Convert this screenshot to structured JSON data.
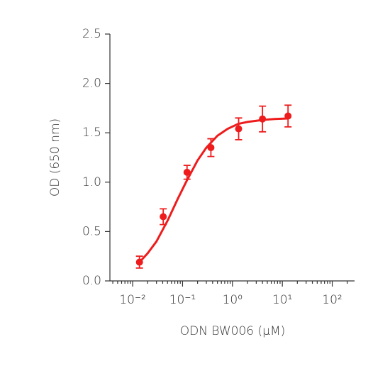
{
  "chart_data": {
    "type": "scatter",
    "x_label": "ODN BW006 (μM)",
    "y_label": "OD (650 nm)",
    "x_scale": "log",
    "color": "#ee1c1c",
    "x": [
      0.0137,
      0.041,
      0.123,
      0.37,
      1.33,
      4,
      13
    ],
    "values": [
      0.19,
      0.65,
      1.1,
      1.35,
      1.54,
      1.64,
      1.67
    ],
    "errors": [
      0.06,
      0.08,
      0.07,
      0.09,
      0.11,
      0.13,
      0.11
    ],
    "fit": {
      "x": [
        0.0137,
        0.02,
        0.03,
        0.05,
        0.08,
        0.12,
        0.2,
        0.3,
        0.5,
        0.8,
        1.3,
        2,
        4,
        7,
        13
      ],
      "values": [
        0.19,
        0.28,
        0.4,
        0.61,
        0.83,
        1.01,
        1.22,
        1.35,
        1.47,
        1.54,
        1.59,
        1.61,
        1.63,
        1.64,
        1.645
      ]
    },
    "xlim": [
      0.0035,
      280
    ],
    "ylim": [
      0,
      2.5
    ],
    "xticks": [
      {
        "value": 0.01,
        "label": "10⁻²"
      },
      {
        "value": 0.1,
        "label": "10⁻¹"
      },
      {
        "value": 1,
        "label": "10⁰"
      },
      {
        "value": 10,
        "label": "10¹"
      },
      {
        "value": 100,
        "label": "10²"
      }
    ],
    "yticks": [
      {
        "value": 0,
        "label": "0.0"
      },
      {
        "value": 0.5,
        "label": "0.5"
      },
      {
        "value": 1,
        "label": "1.0"
      },
      {
        "value": 1.5,
        "label": "1.5"
      },
      {
        "value": 2,
        "label": "2.0"
      },
      {
        "value": 2.5,
        "label": "2.5"
      }
    ]
  }
}
